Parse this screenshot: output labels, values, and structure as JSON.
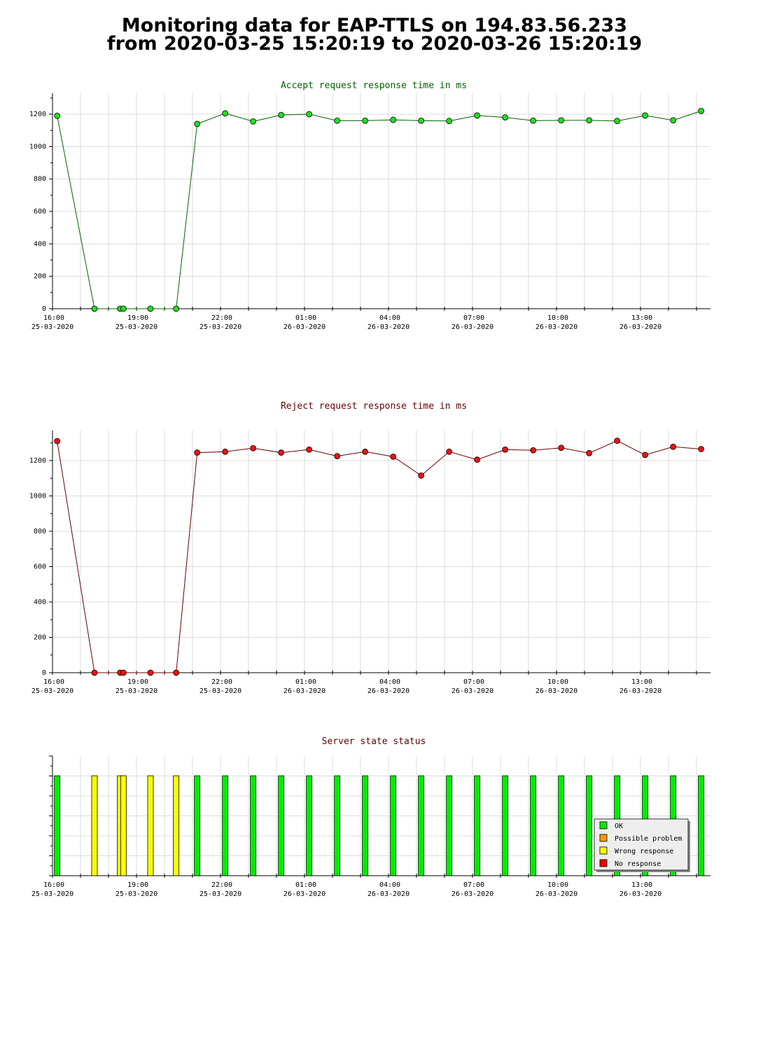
{
  "header": {
    "line1": "Monitoring data for EAP-TTLS on 194.83.56.233",
    "line2": "from 2020-03-25 15:20:19 to 2020-03-26 15:20:19"
  },
  "chart_data": [
    {
      "type": "line",
      "title": "Accept request response time in ms",
      "title_color": "#006400",
      "line_color": "#006400",
      "marker_color": "#22dd22",
      "xlabel": "",
      "ylabel": "",
      "ylim": [
        0,
        1330
      ],
      "grid": true,
      "yticks": [
        "0",
        "200",
        "400",
        "600",
        "800",
        "1000",
        "1200"
      ],
      "xticks": [
        {
          "time": "16:00",
          "date": "25-03-2020"
        },
        {
          "time": "19:00",
          "date": "25-03-2020"
        },
        {
          "time": "22:00",
          "date": "25-03-2020"
        },
        {
          "time": "01:00",
          "date": "26-03-2020"
        },
        {
          "time": "04:00",
          "date": "26-03-2020"
        },
        {
          "time": "07:00",
          "date": "26-03-2020"
        },
        {
          "time": "10:00",
          "date": "26-03-2020"
        },
        {
          "time": "13:00",
          "date": "26-03-2020"
        }
      ],
      "x": [
        "2020-03-25 16:10",
        "2020-03-25 17:30",
        "2020-03-25 18:25",
        "2020-03-25 18:32",
        "2020-03-25 19:30",
        "2020-03-25 20:25",
        "2020-03-25 21:10",
        "2020-03-25 22:10",
        "2020-03-25 23:10",
        "2020-03-26 00:10",
        "2020-03-26 01:10",
        "2020-03-26 02:10",
        "2020-03-26 03:10",
        "2020-03-26 04:10",
        "2020-03-26 05:10",
        "2020-03-26 06:10",
        "2020-03-26 07:10",
        "2020-03-26 08:10",
        "2020-03-26 09:10",
        "2020-03-26 10:10",
        "2020-03-26 11:10",
        "2020-03-26 12:10",
        "2020-03-26 13:10",
        "2020-03-26 14:10",
        "2020-03-26 15:10"
      ],
      "values": [
        1190,
        0,
        0,
        0,
        0,
        0,
        1140,
        1205,
        1155,
        1195,
        1200,
        1160,
        1160,
        1165,
        1160,
        1158,
        1192,
        1180,
        1160,
        1162,
        1162,
        1158,
        1192,
        1162,
        1220
      ]
    },
    {
      "type": "line",
      "title": "Reject request response time in ms",
      "title_color": "#660000",
      "line_color": "#660000",
      "marker_color": "#ee1111",
      "xlabel": "",
      "ylabel": "",
      "ylim": [
        0,
        1370
      ],
      "grid": true,
      "yticks": [
        "0",
        "200",
        "400",
        "600",
        "800",
        "1000",
        "1200"
      ],
      "xticks": [
        {
          "time": "16:00",
          "date": "25-03-2020"
        },
        {
          "time": "19:00",
          "date": "25-03-2020"
        },
        {
          "time": "22:00",
          "date": "25-03-2020"
        },
        {
          "time": "01:00",
          "date": "26-03-2020"
        },
        {
          "time": "04:00",
          "date": "26-03-2020"
        },
        {
          "time": "07:00",
          "date": "26-03-2020"
        },
        {
          "time": "10:00",
          "date": "26-03-2020"
        },
        {
          "time": "13:00",
          "date": "26-03-2020"
        }
      ],
      "x": [
        "2020-03-25 16:10",
        "2020-03-25 17:30",
        "2020-03-25 18:25",
        "2020-03-25 18:32",
        "2020-03-25 19:30",
        "2020-03-25 20:25",
        "2020-03-25 21:10",
        "2020-03-25 22:10",
        "2020-03-25 23:10",
        "2020-03-26 00:10",
        "2020-03-26 01:10",
        "2020-03-26 02:10",
        "2020-03-26 03:10",
        "2020-03-26 04:10",
        "2020-03-26 05:10",
        "2020-03-26 06:10",
        "2020-03-26 07:10",
        "2020-03-26 08:10",
        "2020-03-26 09:10",
        "2020-03-26 10:10",
        "2020-03-26 11:10",
        "2020-03-26 12:10",
        "2020-03-26 13:10",
        "2020-03-26 14:10",
        "2020-03-26 15:10"
      ],
      "values": [
        1310,
        0,
        0,
        0,
        0,
        0,
        1245,
        1250,
        1270,
        1245,
        1262,
        1225,
        1250,
        1222,
        1115,
        1250,
        1205,
        1262,
        1258,
        1272,
        1242,
        1312,
        1232,
        1278,
        1265
      ]
    },
    {
      "type": "bar",
      "title": "Server state status",
      "title_color": "#660000",
      "grid": true,
      "xticks": [
        {
          "time": "16:00",
          "date": "25-03-2020"
        },
        {
          "time": "19:00",
          "date": "25-03-2020"
        },
        {
          "time": "22:00",
          "date": "25-03-2020"
        },
        {
          "time": "01:00",
          "date": "26-03-2020"
        },
        {
          "time": "04:00",
          "date": "26-03-2020"
        },
        {
          "time": "07:00",
          "date": "26-03-2020"
        },
        {
          "time": "10:00",
          "date": "26-03-2020"
        },
        {
          "time": "13:00",
          "date": "26-03-2020"
        }
      ],
      "x": [
        "2020-03-25 16:10",
        "2020-03-25 17:30",
        "2020-03-25 18:25",
        "2020-03-25 18:32",
        "2020-03-25 19:30",
        "2020-03-25 20:25",
        "2020-03-25 21:10",
        "2020-03-25 22:10",
        "2020-03-25 23:10",
        "2020-03-26 00:10",
        "2020-03-26 01:10",
        "2020-03-26 02:10",
        "2020-03-26 03:10",
        "2020-03-26 04:10",
        "2020-03-26 05:10",
        "2020-03-26 06:10",
        "2020-03-26 07:10",
        "2020-03-26 08:10",
        "2020-03-26 09:10",
        "2020-03-26 10:10",
        "2020-03-26 11:10",
        "2020-03-26 12:10",
        "2020-03-26 13:10",
        "2020-03-26 14:10",
        "2020-03-26 15:10"
      ],
      "status": [
        "OK",
        "Wrong response",
        "Wrong response",
        "Wrong response",
        "Wrong response",
        "Wrong response",
        "OK",
        "OK",
        "OK",
        "OK",
        "OK",
        "OK",
        "OK",
        "OK",
        "OK",
        "OK",
        "OK",
        "OK",
        "OK",
        "OK",
        "OK",
        "OK",
        "OK",
        "OK",
        "OK"
      ],
      "legend_position": "bottom-right",
      "legend": [
        {
          "label": "OK",
          "color": "#00ee00"
        },
        {
          "label": "Possible problem",
          "color": "#ff9900"
        },
        {
          "label": "Wrong response",
          "color": "#ffff00"
        },
        {
          "label": "No response",
          "color": "#ee0000"
        }
      ]
    }
  ]
}
